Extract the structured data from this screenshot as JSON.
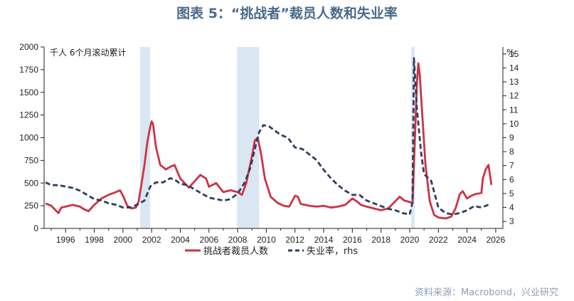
{
  "colors": {
    "title": "#4a6a8a",
    "source": "#8aa0b5",
    "layoffs_series": "#cc3344",
    "unemployment_series": "#2f3e5c",
    "recession_band": "#dbe6f3",
    "axis": "#222222"
  },
  "page": {
    "title": "图表 5：“挑战者”裁员人数和失业率",
    "source": "资料来源：Macrobond，兴业研究"
  },
  "chart_data": {
    "type": "line",
    "title": "图表 5：“挑战者”裁员人数和失业率",
    "left_unit": "千人 6个月滚动累计",
    "right_unit": "%",
    "xlim": [
      1994.5,
      2026.5
    ],
    "ylim_left": [
      0,
      2000
    ],
    "ylim_right": [
      2.5,
      15.5
    ],
    "x_ticks": [
      "1996",
      "1998",
      "2000",
      "2002",
      "2004",
      "2006",
      "2008",
      "2010",
      "2012",
      "2014",
      "2016",
      "2018",
      "2020",
      "2022",
      "2024",
      "2026"
    ],
    "y_ticks_left": [
      "0",
      "250",
      "500",
      "750",
      "1000",
      "1250",
      "1500",
      "1750",
      "2000"
    ],
    "y_ticks_right": [
      "3",
      "4",
      "5",
      "6",
      "7",
      "8",
      "9",
      "10",
      "11",
      "12",
      "13",
      "14",
      "15"
    ],
    "recession_bands": [
      {
        "start": 2001.2,
        "end": 2001.9
      },
      {
        "start": 2007.95,
        "end": 2009.5
      },
      {
        "start": 2020.1,
        "end": 2020.35
      }
    ],
    "series": [
      {
        "name": "挑战者裁员人数",
        "axis": "left",
        "style": "solid",
        "points": [
          [
            1994.6,
            275
          ],
          [
            1995.0,
            250
          ],
          [
            1995.3,
            200
          ],
          [
            1995.5,
            170
          ],
          [
            1995.7,
            230
          ],
          [
            1996.0,
            240
          ],
          [
            1996.5,
            260
          ],
          [
            1997.0,
            240
          ],
          [
            1997.3,
            210
          ],
          [
            1997.6,
            190
          ],
          [
            1998.0,
            260
          ],
          [
            1998.5,
            330
          ],
          [
            1999.0,
            370
          ],
          [
            1999.5,
            400
          ],
          [
            1999.8,
            420
          ],
          [
            2000.0,
            360
          ],
          [
            2000.3,
            250
          ],
          [
            2000.6,
            220
          ],
          [
            2000.9,
            230
          ],
          [
            2001.1,
            300
          ],
          [
            2001.3,
            500
          ],
          [
            2001.5,
            700
          ],
          [
            2001.7,
            950
          ],
          [
            2001.9,
            1120
          ],
          [
            2002.0,
            1180
          ],
          [
            2002.1,
            1150
          ],
          [
            2002.3,
            900
          ],
          [
            2002.6,
            700
          ],
          [
            2003.0,
            650
          ],
          [
            2003.3,
            680
          ],
          [
            2003.6,
            700
          ],
          [
            2004.0,
            550
          ],
          [
            2004.3,
            500
          ],
          [
            2004.6,
            450
          ],
          [
            2005.0,
            520
          ],
          [
            2005.4,
            590
          ],
          [
            2005.8,
            550
          ],
          [
            2006.0,
            460
          ],
          [
            2006.5,
            500
          ],
          [
            2007.0,
            400
          ],
          [
            2007.5,
            420
          ],
          [
            2008.0,
            400
          ],
          [
            2008.3,
            370
          ],
          [
            2008.6,
            500
          ],
          [
            2009.0,
            800
          ],
          [
            2009.2,
            970
          ],
          [
            2009.4,
            1000
          ],
          [
            2009.6,
            850
          ],
          [
            2009.9,
            550
          ],
          [
            2010.3,
            350
          ],
          [
            2010.8,
            280
          ],
          [
            2011.2,
            250
          ],
          [
            2011.6,
            240
          ],
          [
            2012.0,
            360
          ],
          [
            2012.2,
            350
          ],
          [
            2012.4,
            270
          ],
          [
            2013.0,
            250
          ],
          [
            2013.5,
            240
          ],
          [
            2014.0,
            250
          ],
          [
            2014.5,
            230
          ],
          [
            2015.0,
            240
          ],
          [
            2015.5,
            260
          ],
          [
            2016.0,
            330
          ],
          [
            2016.3,
            300
          ],
          [
            2016.6,
            260
          ],
          [
            2017.0,
            240
          ],
          [
            2017.5,
            220
          ],
          [
            2018.0,
            200
          ],
          [
            2018.5,
            220
          ],
          [
            2019.0,
            300
          ],
          [
            2019.3,
            350
          ],
          [
            2019.6,
            310
          ],
          [
            2020.0,
            290
          ],
          [
            2020.2,
            280
          ],
          [
            2020.3,
            700
          ],
          [
            2020.5,
            1600
          ],
          [
            2020.6,
            1820
          ],
          [
            2020.7,
            1700
          ],
          [
            2020.9,
            1200
          ],
          [
            2021.1,
            700
          ],
          [
            2021.4,
            300
          ],
          [
            2021.7,
            150
          ],
          [
            2022.0,
            120
          ],
          [
            2022.5,
            110
          ],
          [
            2022.9,
            130
          ],
          [
            2023.2,
            220
          ],
          [
            2023.5,
            380
          ],
          [
            2023.7,
            410
          ],
          [
            2024.0,
            330
          ],
          [
            2024.3,
            360
          ],
          [
            2024.6,
            380
          ],
          [
            2025.0,
            390
          ],
          [
            2025.1,
            550
          ],
          [
            2025.3,
            650
          ],
          [
            2025.5,
            700
          ],
          [
            2025.7,
            480
          ]
        ]
      },
      {
        "name": "失业率，rhs",
        "axis": "right",
        "style": "dashed",
        "points": [
          [
            1994.6,
            5.8
          ],
          [
            1995.0,
            5.6
          ],
          [
            1995.5,
            5.6
          ],
          [
            1996.0,
            5.5
          ],
          [
            1996.5,
            5.4
          ],
          [
            1997.0,
            5.2
          ],
          [
            1997.5,
            4.9
          ],
          [
            1998.0,
            4.6
          ],
          [
            1998.5,
            4.5
          ],
          [
            1999.0,
            4.3
          ],
          [
            1999.5,
            4.2
          ],
          [
            2000.0,
            4.0
          ],
          [
            2000.5,
            4.0
          ],
          [
            2001.0,
            4.2
          ],
          [
            2001.5,
            4.5
          ],
          [
            2001.9,
            5.5
          ],
          [
            2002.3,
            5.8
          ],
          [
            2002.8,
            5.8
          ],
          [
            2003.3,
            6.1
          ],
          [
            2003.6,
            6.0
          ],
          [
            2004.0,
            5.7
          ],
          [
            2004.5,
            5.6
          ],
          [
            2005.0,
            5.3
          ],
          [
            2005.5,
            5.0
          ],
          [
            2006.0,
            4.7
          ],
          [
            2006.5,
            4.6
          ],
          [
            2007.0,
            4.5
          ],
          [
            2007.5,
            4.6
          ],
          [
            2008.0,
            5.0
          ],
          [
            2008.5,
            5.8
          ],
          [
            2008.9,
            6.9
          ],
          [
            2009.2,
            8.2
          ],
          [
            2009.5,
            9.4
          ],
          [
            2009.8,
            9.9
          ],
          [
            2010.2,
            9.8
          ],
          [
            2010.6,
            9.5
          ],
          [
            2011.0,
            9.2
          ],
          [
            2011.5,
            9.0
          ],
          [
            2012.0,
            8.3
          ],
          [
            2012.5,
            8.2
          ],
          [
            2013.0,
            7.8
          ],
          [
            2013.5,
            7.4
          ],
          [
            2014.0,
            6.7
          ],
          [
            2014.5,
            6.1
          ],
          [
            2015.0,
            5.6
          ],
          [
            2015.5,
            5.2
          ],
          [
            2016.0,
            4.9
          ],
          [
            2016.5,
            4.9
          ],
          [
            2017.0,
            4.5
          ],
          [
            2017.5,
            4.3
          ],
          [
            2018.0,
            4.1
          ],
          [
            2018.5,
            3.9
          ],
          [
            2019.0,
            3.8
          ],
          [
            2019.5,
            3.6
          ],
          [
            2020.0,
            3.5
          ],
          [
            2020.2,
            4.4
          ],
          [
            2020.3,
            14.7
          ],
          [
            2020.5,
            11.1
          ],
          [
            2020.8,
            7.9
          ],
          [
            2021.0,
            6.4
          ],
          [
            2021.5,
            5.9
          ],
          [
            2022.0,
            4.0
          ],
          [
            2022.5,
            3.6
          ],
          [
            2023.0,
            3.5
          ],
          [
            2023.5,
            3.6
          ],
          [
            2024.0,
            3.8
          ],
          [
            2024.5,
            4.1
          ],
          [
            2025.0,
            4.0
          ],
          [
            2025.5,
            4.2
          ]
        ]
      }
    ]
  }
}
